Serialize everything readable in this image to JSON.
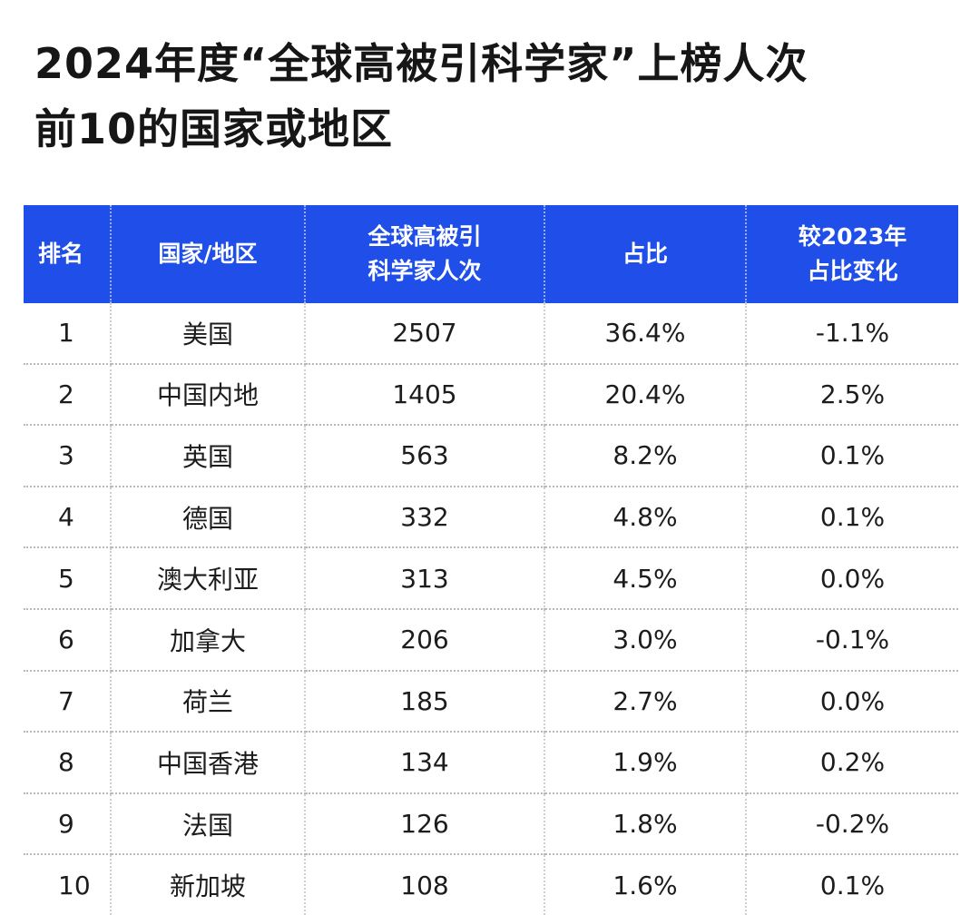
{
  "title": {
    "line1": "2024年度“全球高被引科学家”上榜人次",
    "line2": "前10的国家或地区"
  },
  "table": {
    "headers": {
      "rank": "排名",
      "region": "国家/地区",
      "count_line1": "全球高被引",
      "count_line2": "科学家人次",
      "share": "占比",
      "change_line1": "较2023年",
      "change_line2": "占比变化"
    },
    "rows": [
      {
        "rank": "1",
        "region": "美国",
        "count": "2507",
        "share": "36.4%",
        "change": "-1.1%"
      },
      {
        "rank": "2",
        "region": "中国内地",
        "count": "1405",
        "share": "20.4%",
        "change": "2.5%"
      },
      {
        "rank": "3",
        "region": "英国",
        "count": "563",
        "share": "8.2%",
        "change": "0.1%"
      },
      {
        "rank": "4",
        "region": "德国",
        "count": "332",
        "share": "4.8%",
        "change": "0.1%"
      },
      {
        "rank": "5",
        "region": "澳大利亚",
        "count": "313",
        "share": "4.5%",
        "change": "0.0%"
      },
      {
        "rank": "6",
        "region": "加拿大",
        "count": "206",
        "share": "3.0%",
        "change": "-0.1%"
      },
      {
        "rank": "7",
        "region": "荷兰",
        "count": "185",
        "share": "2.7%",
        "change": "0.0%"
      },
      {
        "rank": "8",
        "region": "中国香港",
        "count": "134",
        "share": "1.9%",
        "change": "0.2%"
      },
      {
        "rank": "9",
        "region": "法国",
        "count": "126",
        "share": "1.8%",
        "change": "-0.2%"
      },
      {
        "rank": "10",
        "region": "新加坡",
        "count": "108",
        "share": "1.6%",
        "change": "0.1%"
      }
    ]
  },
  "colors": {
    "header_bg": "#1f4fe8",
    "header_text": "#ffffff",
    "title_text": "#161616"
  }
}
